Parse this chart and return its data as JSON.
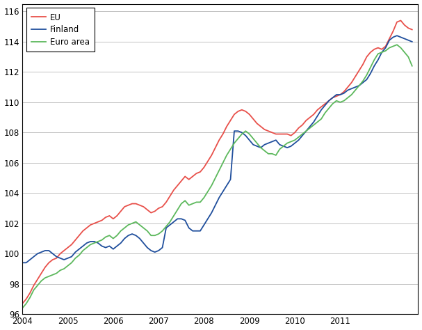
{
  "title": "",
  "ylabel": "",
  "xlabel": "",
  "ylim": [
    96,
    116.5
  ],
  "yticks": [
    96,
    98,
    100,
    102,
    104,
    106,
    108,
    110,
    112,
    114,
    116
  ],
  "x_start_year": 2004,
  "xtick_years": [
    2004,
    2005,
    2006,
    2007,
    2008,
    2009,
    2010,
    2011
  ],
  "legend_labels": [
    "EU",
    "Finland",
    "Euro area"
  ],
  "line_colors": [
    "#e8504a",
    "#1f4e9c",
    "#5cb85c"
  ],
  "line_width": 1.3,
  "background_color": "#ffffff",
  "grid_color": "#aaaaaa",
  "eu": [
    96.7,
    97.0,
    97.4,
    97.9,
    98.3,
    98.7,
    99.1,
    99.4,
    99.6,
    99.7,
    100.0,
    100.2,
    100.4,
    100.6,
    100.9,
    101.2,
    101.5,
    101.7,
    101.9,
    102.0,
    102.1,
    102.2,
    102.4,
    102.5,
    102.3,
    102.5,
    102.8,
    103.1,
    103.2,
    103.3,
    103.3,
    103.2,
    103.1,
    102.9,
    102.7,
    102.8,
    103.0,
    103.1,
    103.4,
    103.8,
    104.2,
    104.5,
    104.8,
    105.1,
    104.9,
    105.1,
    105.3,
    105.4,
    105.7,
    106.1,
    106.5,
    107.0,
    107.5,
    107.9,
    108.4,
    108.8,
    109.2,
    109.4,
    109.5,
    109.4,
    109.2,
    108.9,
    108.6,
    108.4,
    108.2,
    108.1,
    108.0,
    107.9,
    107.9,
    107.9,
    107.9,
    107.8,
    108.0,
    108.3,
    108.5,
    108.8,
    109.0,
    109.2,
    109.5,
    109.7,
    109.9,
    110.1,
    110.3,
    110.4,
    110.5,
    110.7,
    111.0,
    111.3,
    111.7,
    112.1,
    112.5,
    113.0,
    113.3,
    113.5,
    113.6,
    113.5,
    113.7,
    114.2,
    114.7,
    115.3,
    115.4,
    115.1,
    114.9,
    114.8
  ],
  "finland": [
    99.4,
    99.4,
    99.6,
    99.8,
    100.0,
    100.1,
    100.2,
    100.2,
    100.0,
    99.8,
    99.7,
    99.6,
    99.7,
    99.8,
    100.1,
    100.3,
    100.5,
    100.7,
    100.8,
    100.8,
    100.7,
    100.5,
    100.4,
    100.5,
    100.3,
    100.5,
    100.7,
    101.0,
    101.2,
    101.3,
    101.2,
    101.0,
    100.7,
    100.4,
    100.2,
    100.1,
    100.2,
    100.4,
    101.7,
    101.9,
    102.1,
    102.3,
    102.3,
    102.2,
    101.7,
    101.5,
    101.5,
    101.5,
    101.9,
    102.3,
    102.7,
    103.2,
    103.7,
    104.1,
    104.5,
    104.9,
    108.1,
    108.1,
    108.0,
    107.8,
    107.5,
    107.2,
    107.1,
    107.0,
    107.2,
    107.3,
    107.4,
    107.5,
    107.2,
    107.1,
    107.0,
    107.1,
    107.3,
    107.5,
    107.8,
    108.1,
    108.4,
    108.7,
    109.1,
    109.5,
    109.8,
    110.1,
    110.3,
    110.5,
    110.5,
    110.6,
    110.8,
    110.9,
    111.0,
    111.1,
    111.3,
    111.5,
    111.9,
    112.4,
    112.8,
    113.3,
    113.6,
    114.1,
    114.3,
    114.4,
    114.3,
    114.2,
    114.1,
    114.0
  ],
  "euro_area": [
    96.4,
    96.7,
    97.1,
    97.6,
    97.9,
    98.2,
    98.4,
    98.5,
    98.6,
    98.7,
    98.9,
    99.0,
    99.2,
    99.4,
    99.7,
    99.9,
    100.2,
    100.4,
    100.6,
    100.7,
    100.8,
    100.9,
    101.1,
    101.2,
    101.0,
    101.2,
    101.5,
    101.7,
    101.9,
    102.0,
    102.1,
    101.9,
    101.7,
    101.5,
    101.2,
    101.2,
    101.3,
    101.5,
    101.8,
    102.1,
    102.5,
    102.9,
    103.3,
    103.5,
    103.2,
    103.3,
    103.4,
    103.4,
    103.7,
    104.1,
    104.5,
    105.0,
    105.5,
    106.0,
    106.5,
    106.9,
    107.3,
    107.6,
    107.9,
    108.1,
    107.9,
    107.6,
    107.3,
    107.0,
    106.8,
    106.6,
    106.6,
    106.5,
    106.9,
    107.1,
    107.3,
    107.4,
    107.5,
    107.7,
    107.9,
    108.1,
    108.3,
    108.5,
    108.7,
    108.9,
    109.3,
    109.6,
    109.9,
    110.1,
    110.0,
    110.1,
    110.3,
    110.5,
    110.8,
    111.1,
    111.4,
    111.8,
    112.3,
    112.8,
    113.2,
    113.3,
    113.4,
    113.6,
    113.7,
    113.8,
    113.6,
    113.3,
    113.0,
    112.4
  ]
}
